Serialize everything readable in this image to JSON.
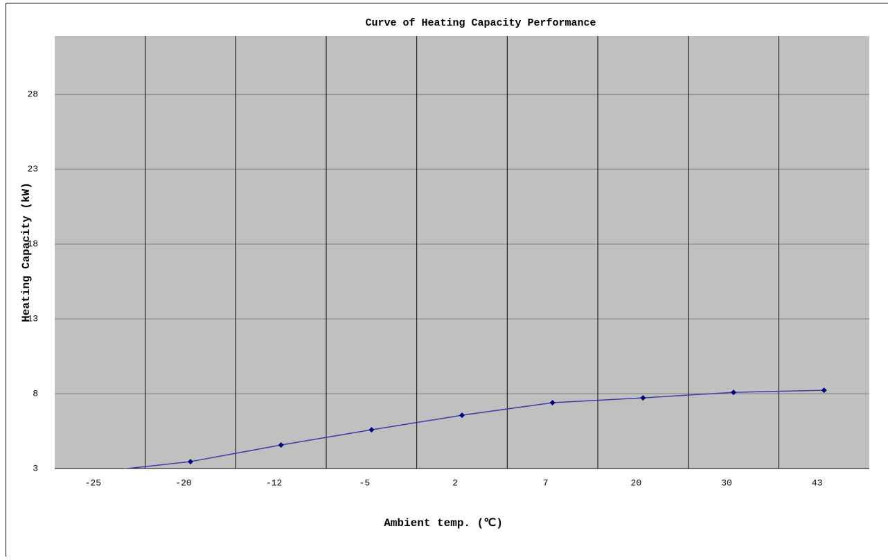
{
  "chart_data": {
    "type": "line",
    "title": "Curve of Heating Capacity Performance",
    "x_label": "Ambient temp. (℃)",
    "y_label": "Heating Capacity (kW)",
    "categories": [
      "-25",
      "-20",
      "-12",
      "-5",
      "2",
      "7",
      "20",
      "30",
      "43"
    ],
    "values": [
      2.8,
      3.46,
      4.57,
      5.59,
      6.56,
      7.4,
      7.72,
      8.09,
      8.23
    ],
    "color": "#3a3aa8",
    "marker_color": "#000080",
    "background": "#c0c0c0",
    "ylim": [
      3,
      31.9
    ],
    "yticks": [
      3,
      8,
      13,
      18,
      23,
      28
    ],
    "grid": true
  }
}
